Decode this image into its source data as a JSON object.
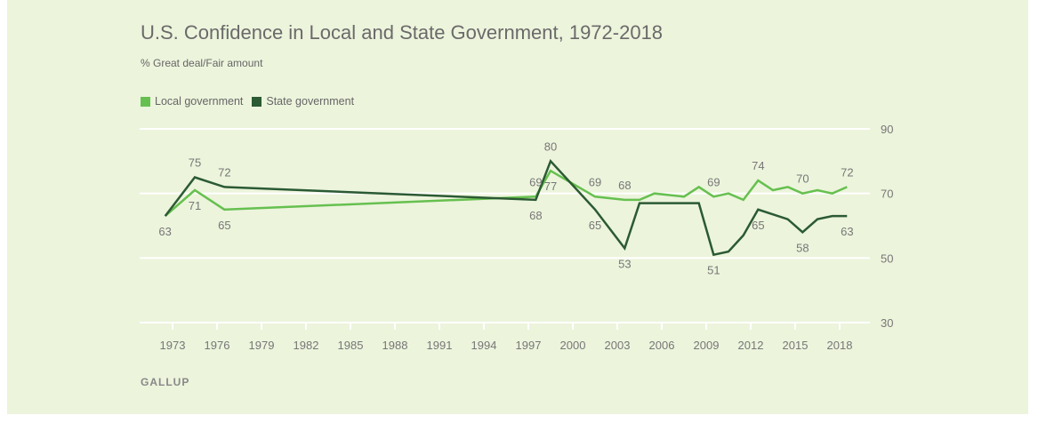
{
  "chart_data": {
    "type": "line",
    "title": "U.S. Confidence in Local and State Government, 1972-2018",
    "subtitle": "% Great deal/Fair amount",
    "source": "GALLUP",
    "ylim": [
      30,
      90
    ],
    "yticks": [
      90,
      70,
      50,
      30
    ],
    "xticks": [
      1973,
      1976,
      1979,
      1982,
      1985,
      1988,
      1991,
      1994,
      1997,
      2000,
      2003,
      2006,
      2009,
      2012,
      2015,
      2018
    ],
    "grid": true,
    "legend_placement": "top-left",
    "series": [
      {
        "name": "Local government",
        "color": "#66c04f",
        "points": [
          [
            1972,
            63
          ],
          [
            1974,
            71
          ],
          [
            1976,
            65
          ],
          [
            1997,
            69
          ],
          [
            1998,
            77
          ],
          [
            2001,
            69
          ],
          [
            2003,
            68
          ],
          [
            2004,
            68
          ],
          [
            2005,
            70
          ],
          [
            2007,
            69
          ],
          [
            2008,
            72
          ],
          [
            2009,
            69
          ],
          [
            2010,
            70
          ],
          [
            2011,
            68
          ],
          [
            2012,
            74
          ],
          [
            2013,
            71
          ],
          [
            2014,
            72
          ],
          [
            2015,
            70
          ],
          [
            2016,
            71
          ],
          [
            2017,
            70
          ],
          [
            2018,
            72
          ]
        ]
      },
      {
        "name": "State government",
        "color": "#2b5a33",
        "points": [
          [
            1972,
            63
          ],
          [
            1974,
            75
          ],
          [
            1976,
            72
          ],
          [
            1997,
            68
          ],
          [
            1998,
            80
          ],
          [
            2001,
            65
          ],
          [
            2003,
            53
          ],
          [
            2004,
            67
          ],
          [
            2005,
            67
          ],
          [
            2007,
            67
          ],
          [
            2008,
            67
          ],
          [
            2009,
            51
          ],
          [
            2010,
            52
          ],
          [
            2011,
            57
          ],
          [
            2012,
            65
          ],
          [
            2014,
            62
          ],
          [
            2015,
            58
          ],
          [
            2016,
            62
          ],
          [
            2017,
            63
          ],
          [
            2018,
            63
          ]
        ]
      }
    ],
    "data_labels": [
      {
        "series": 0,
        "year": 1972,
        "value": 63,
        "pos": "below"
      },
      {
        "series": 0,
        "year": 1974,
        "value": 71,
        "pos": "below"
      },
      {
        "series": 0,
        "year": 1976,
        "value": 65,
        "pos": "below"
      },
      {
        "series": 0,
        "year": 1997,
        "value": 69,
        "pos": "above"
      },
      {
        "series": 0,
        "year": 1998,
        "value": 77,
        "pos": "below"
      },
      {
        "series": 0,
        "year": 2001,
        "value": 69,
        "pos": "above"
      },
      {
        "series": 0,
        "year": 2003,
        "value": 68,
        "pos": "above"
      },
      {
        "series": 0,
        "year": 2009,
        "value": 69,
        "pos": "above"
      },
      {
        "series": 0,
        "year": 2012,
        "value": 74,
        "pos": "above"
      },
      {
        "series": 0,
        "year": 2015,
        "value": 70,
        "pos": "above"
      },
      {
        "series": 0,
        "year": 2018,
        "value": 72,
        "pos": "above"
      },
      {
        "series": 1,
        "year": 1974,
        "value": 75,
        "pos": "above"
      },
      {
        "series": 1,
        "year": 1976,
        "value": 72,
        "pos": "above"
      },
      {
        "series": 1,
        "year": 1997,
        "value": 68,
        "pos": "below"
      },
      {
        "series": 1,
        "year": 1998,
        "value": 80,
        "pos": "above"
      },
      {
        "series": 1,
        "year": 2001,
        "value": 65,
        "pos": "below"
      },
      {
        "series": 1,
        "year": 2003,
        "value": 53,
        "pos": "below"
      },
      {
        "series": 1,
        "year": 2009,
        "value": 51,
        "pos": "below"
      },
      {
        "series": 1,
        "year": 2012,
        "value": 65,
        "pos": "below"
      },
      {
        "series": 1,
        "year": 2015,
        "value": 58,
        "pos": "below"
      },
      {
        "series": 1,
        "year": 2018,
        "value": 63,
        "pos": "below"
      }
    ]
  },
  "colors": {
    "background": "#ecf4dc",
    "grid": "#ffffff"
  }
}
